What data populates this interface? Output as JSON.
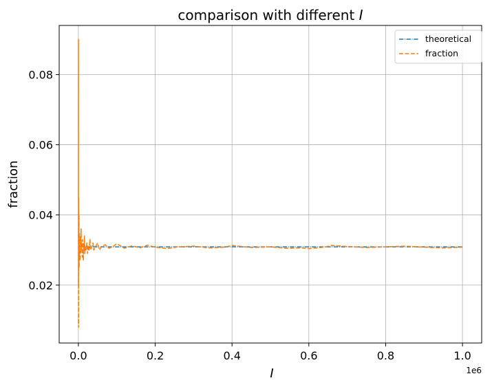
{
  "chart_data": {
    "type": "line",
    "title_prefix": "comparison with different ",
    "title_var": "I",
    "xlabel": "I",
    "ylabel": "fraction",
    "x_offset_label": "1e6",
    "xlim": [
      -50000,
      1050000
    ],
    "ylim": [
      0.0035,
      0.094
    ],
    "xticks": [
      0,
      200000,
      400000,
      600000,
      800000,
      1000000
    ],
    "xtick_labels": [
      "0.0",
      "0.2",
      "0.4",
      "0.6",
      "0.8",
      "1.0"
    ],
    "yticks": [
      0.02,
      0.04,
      0.06,
      0.08
    ],
    "ytick_labels": [
      "0.02",
      "0.04",
      "0.06",
      "0.08"
    ],
    "grid": true,
    "legend_position": "top-right",
    "series": [
      {
        "name": "theoretical",
        "color": "#1f77b4",
        "style": "dashdot",
        "x": [
          0,
          1000000
        ],
        "y": [
          0.0309,
          0.0309
        ]
      },
      {
        "name": "fraction",
        "color": "#ff7f0e",
        "style": "dashed",
        "x": [
          100,
          200,
          300,
          500,
          700,
          1000,
          1500,
          2000,
          2500,
          3000,
          4000,
          5000,
          6000,
          7000,
          8000,
          9000,
          10000,
          11000,
          12000,
          13000,
          14000,
          15000,
          16000,
          17000,
          18000,
          20000,
          22000,
          24000,
          26000,
          28000,
          30000,
          32000,
          35000,
          38000,
          40000,
          45000,
          50000,
          55000,
          60000,
          70000,
          80000,
          90000,
          100000,
          120000,
          140000,
          160000,
          180000,
          200000,
          230000,
          260000,
          300000,
          340000,
          380000,
          400000,
          450000,
          500000,
          540000,
          580000,
          600000,
          640000,
          660000,
          700000,
          750000,
          800000,
          850000,
          900000,
          950000,
          1000000
        ],
        "y": [
          0.02,
          0.09,
          0.01,
          0.008,
          0.045,
          0.028,
          0.04,
          0.025,
          0.035,
          0.031,
          0.027,
          0.034,
          0.029,
          0.036,
          0.03,
          0.032,
          0.028,
          0.033,
          0.03,
          0.027,
          0.032,
          0.03,
          0.034,
          0.029,
          0.031,
          0.03,
          0.032,
          0.029,
          0.031,
          0.03,
          0.033,
          0.03,
          0.031,
          0.032,
          0.03,
          0.031,
          0.032,
          0.03,
          0.031,
          0.0315,
          0.0305,
          0.031,
          0.0318,
          0.0305,
          0.0312,
          0.0306,
          0.0314,
          0.0308,
          0.0304,
          0.0309,
          0.0311,
          0.0306,
          0.0308,
          0.0313,
          0.0307,
          0.0309,
          0.0305,
          0.0306,
          0.0304,
          0.0308,
          0.0313,
          0.031,
          0.0307,
          0.0309,
          0.0311,
          0.0308,
          0.0306,
          0.0308
        ]
      }
    ]
  }
}
